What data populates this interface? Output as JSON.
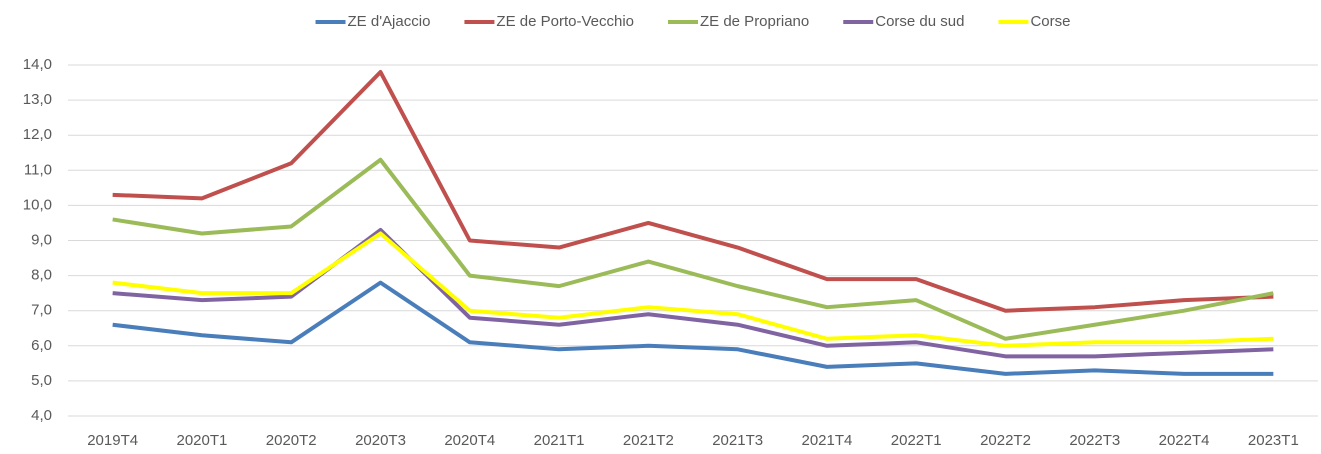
{
  "chart_data": {
    "type": "line",
    "categories": [
      "2019T4",
      "2020T1",
      "2020T2",
      "2020T3",
      "2020T4",
      "2021T1",
      "2021T2",
      "2021T3",
      "2021T4",
      "2022T1",
      "2022T2",
      "2022T3",
      "2022T4",
      "2023T1"
    ],
    "series": [
      {
        "name": "ZE d'Ajaccio",
        "color": "#4a7ebb",
        "values": [
          6.6,
          6.3,
          6.1,
          7.8,
          6.1,
          5.9,
          6.0,
          5.9,
          5.4,
          5.5,
          5.2,
          5.3,
          5.2,
          5.2
        ]
      },
      {
        "name": "ZE de Porto-Vecchio",
        "color": "#c0504d",
        "values": [
          10.3,
          10.2,
          11.2,
          13.8,
          9.0,
          8.8,
          9.5,
          8.8,
          7.9,
          7.9,
          7.0,
          7.1,
          7.3,
          7.4
        ]
      },
      {
        "name": "ZE de Propriano",
        "color": "#9bbb59",
        "values": [
          9.6,
          9.2,
          9.4,
          11.3,
          8.0,
          7.7,
          8.4,
          7.7,
          7.1,
          7.3,
          6.2,
          6.6,
          7.0,
          7.5
        ]
      },
      {
        "name": "Corse du sud",
        "color": "#8064a2",
        "values": [
          7.5,
          7.3,
          7.4,
          9.3,
          6.8,
          6.6,
          6.9,
          6.6,
          6.0,
          6.1,
          5.7,
          5.7,
          5.8,
          5.9
        ]
      },
      {
        "name": "Corse",
        "color": "#ffff00",
        "values": [
          7.8,
          7.5,
          7.5,
          9.2,
          7.0,
          6.8,
          7.1,
          6.9,
          6.2,
          6.3,
          6.0,
          6.1,
          6.1,
          6.2
        ]
      }
    ],
    "ylim": [
      4,
      14
    ],
    "yticks": [
      {
        "value": 4,
        "label": "4,0"
      },
      {
        "value": 5,
        "label": "5,0"
      },
      {
        "value": 6,
        "label": "6,0"
      },
      {
        "value": 7,
        "label": "7,0"
      },
      {
        "value": 8,
        "label": "8,0"
      },
      {
        "value": 9,
        "label": "9,0"
      },
      {
        "value": 10,
        "label": "10,0"
      },
      {
        "value": 11,
        "label": "11,0"
      },
      {
        "value": 12,
        "label": "12,0"
      },
      {
        "value": 13,
        "label": "13,0"
      },
      {
        "value": 14,
        "label": "14,0"
      }
    ],
    "grid": true,
    "legend": "top"
  }
}
